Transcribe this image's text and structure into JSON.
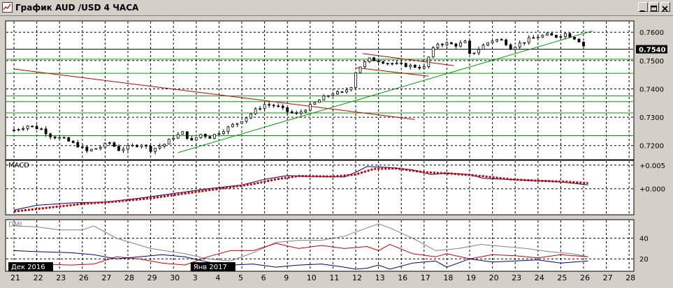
{
  "window": {
    "title": "График AUD /USD  4 ЧАСА",
    "buttons": [
      "minimize",
      "maximize",
      "close"
    ]
  },
  "colors": {
    "background": "#ffffff",
    "grid": "#000000",
    "candle": "#000000",
    "trend_green": "#00a000",
    "trend_red": "#c00000",
    "macd_line": "#000080",
    "macd_signal": "#cc0000",
    "dmi_adx": "#808080",
    "dmi_plus": "#cc0000",
    "dmi_minus": "#000080",
    "label_box": "#000000"
  },
  "chart_data": [
    {
      "type": "candlestick",
      "title": "",
      "current_price_label": "0.7540",
      "y_ticks": [
        "0.7600",
        "0.7500",
        "0.7400",
        "0.7300",
        "0.7200"
      ],
      "ylim": [
        0.715,
        0.764
      ],
      "x_ticks": [
        "21",
        "22",
        "23",
        "26",
        "27",
        "28",
        "29",
        "30",
        "3",
        "4",
        "5",
        "6",
        "9",
        "10",
        "11",
        "12",
        "13",
        "16",
        "17",
        "18",
        "19",
        "20",
        "23",
        "24",
        "25",
        "26",
        "27",
        "28"
      ],
      "date_labels": [
        {
          "text": "Дек 2016",
          "tick": "21"
        },
        {
          "text": "Янв 2017",
          "tick": "3"
        }
      ],
      "horizontal_levels": [
        0.754,
        0.7505,
        0.7455,
        0.7375,
        0.7355,
        0.7315,
        0.7235
      ],
      "trendlines": [
        {
          "color": "red",
          "from": {
            "tick": 0,
            "price": 0.747
          },
          "to": {
            "tick": 17.6,
            "price": 0.7292
          }
        },
        {
          "color": "green",
          "from": {
            "tick": 7.2,
            "price": 0.7175
          },
          "to": {
            "tick": 25.4,
            "price": 0.7605
          }
        },
        {
          "color": "red",
          "from": {
            "tick": 15.3,
            "price": 0.7525
          },
          "to": {
            "tick": 19.3,
            "price": 0.7482
          }
        },
        {
          "color": "red",
          "from": {
            "tick": 15.0,
            "price": 0.7475
          },
          "to": {
            "tick": 18.2,
            "price": 0.7445
          }
        }
      ],
      "close_path": [
        [
          0.0,
          0.7255
        ],
        [
          0.6,
          0.727
        ],
        [
          1.2,
          0.7258
        ],
        [
          1.6,
          0.7235
        ],
        [
          2.2,
          0.7222
        ],
        [
          2.8,
          0.72
        ],
        [
          3.2,
          0.718
        ],
        [
          3.8,
          0.7195
        ],
        [
          4.2,
          0.721
        ],
        [
          4.6,
          0.7185
        ],
        [
          5.0,
          0.7195
        ],
        [
          5.6,
          0.7205
        ],
        [
          6.0,
          0.7185
        ],
        [
          6.6,
          0.7205
        ],
        [
          7.0,
          0.723
        ],
        [
          7.4,
          0.7245
        ],
        [
          7.8,
          0.7215
        ],
        [
          8.2,
          0.724
        ],
        [
          8.6,
          0.723
        ],
        [
          9.2,
          0.7255
        ],
        [
          9.8,
          0.728
        ],
        [
          10.2,
          0.73
        ],
        [
          10.6,
          0.7325
        ],
        [
          11.0,
          0.7345
        ],
        [
          11.5,
          0.734
        ],
        [
          12.0,
          0.732
        ],
        [
          12.4,
          0.731
        ],
        [
          12.8,
          0.733
        ],
        [
          13.2,
          0.735
        ],
        [
          13.6,
          0.737
        ],
        [
          14.0,
          0.7385
        ],
        [
          14.4,
          0.7385
        ],
        [
          14.8,
          0.741
        ],
        [
          15.0,
          0.746
        ],
        [
          15.2,
          0.748
        ],
        [
          15.6,
          0.7505
        ],
        [
          16.0,
          0.75
        ],
        [
          16.5,
          0.749
        ],
        [
          17.0,
          0.7485
        ],
        [
          17.5,
          0.748
        ],
        [
          18.0,
          0.7475
        ],
        [
          18.3,
          0.753
        ],
        [
          18.6,
          0.756
        ],
        [
          19.0,
          0.756
        ],
        [
          19.4,
          0.7555
        ],
        [
          19.8,
          0.7565
        ],
        [
          20.0,
          0.752
        ],
        [
          20.3,
          0.7535
        ],
        [
          20.7,
          0.756
        ],
        [
          21.1,
          0.7575
        ],
        [
          21.5,
          0.757
        ],
        [
          21.8,
          0.7545
        ],
        [
          22.2,
          0.756
        ],
        [
          22.6,
          0.7575
        ],
        [
          23.0,
          0.7585
        ],
        [
          23.4,
          0.759
        ],
        [
          23.8,
          0.7585
        ],
        [
          24.2,
          0.7595
        ],
        [
          24.6,
          0.758
        ],
        [
          24.9,
          0.7565
        ],
        [
          25.1,
          0.754
        ]
      ]
    },
    {
      "type": "line",
      "title": "MACD",
      "y_ticks": [
        "+0.005",
        "+0.000"
      ],
      "ylim": [
        -0.0055,
        0.006
      ],
      "series": [
        {
          "role": "macd",
          "points": [
            [
              0.0,
              -0.0045
            ],
            [
              1.0,
              -0.0035
            ],
            [
              2.5,
              -0.003
            ],
            [
              4.0,
              -0.0028
            ],
            [
              5.5,
              -0.002
            ],
            [
              7.0,
              -0.001
            ],
            [
              8.5,
              0.0
            ],
            [
              10.0,
              0.0008
            ],
            [
              11.0,
              0.002
            ],
            [
              12.0,
              0.0028
            ],
            [
              13.0,
              0.0026
            ],
            [
              14.5,
              0.0025
            ],
            [
              15.0,
              0.0035
            ],
            [
              15.5,
              0.0047
            ],
            [
              16.5,
              0.0045
            ],
            [
              17.5,
              0.004
            ],
            [
              18.3,
              0.003
            ],
            [
              19.0,
              0.0033
            ],
            [
              20.0,
              0.003
            ],
            [
              20.6,
              0.0022
            ],
            [
              21.5,
              0.002
            ],
            [
              22.5,
              0.0018
            ],
            [
              23.5,
              0.0016
            ],
            [
              24.5,
              0.0012
            ],
            [
              25.2,
              0.0008
            ]
          ]
        },
        {
          "role": "signal",
          "points": [
            [
              0.0,
              -0.0048
            ],
            [
              1.5,
              -0.004
            ],
            [
              3.0,
              -0.0032
            ],
            [
              4.5,
              -0.0027
            ],
            [
              6.0,
              -0.002
            ],
            [
              7.5,
              -0.001
            ],
            [
              9.0,
              0.0
            ],
            [
              10.5,
              0.001
            ],
            [
              11.5,
              0.002
            ],
            [
              12.5,
              0.0027
            ],
            [
              14.0,
              0.0026
            ],
            [
              15.0,
              0.003
            ],
            [
              15.8,
              0.0042
            ],
            [
              16.8,
              0.0043
            ],
            [
              18.0,
              0.0035
            ],
            [
              19.2,
              0.0032
            ],
            [
              20.5,
              0.0027
            ],
            [
              21.8,
              0.002
            ],
            [
              23.0,
              0.0017
            ],
            [
              24.2,
              0.0015
            ],
            [
              25.2,
              0.0012
            ]
          ]
        }
      ]
    },
    {
      "type": "line",
      "title": "DMI",
      "y_ticks": [
        "40",
        "20"
      ],
      "ylim": [
        8,
        58
      ],
      "series": [
        {
          "role": "adx",
          "points": [
            [
              0.0,
              52
            ],
            [
              1.0,
              51
            ],
            [
              2.0,
              48
            ],
            [
              3.0,
              48
            ],
            [
              3.5,
              52
            ],
            [
              4.5,
              40
            ],
            [
              6.0,
              30
            ],
            [
              7.5,
              25
            ],
            [
              8.5,
              20
            ],
            [
              9.5,
              18
            ],
            [
              10.5,
              26
            ],
            [
              11.5,
              36
            ],
            [
              12.5,
              38
            ],
            [
              13.5,
              38
            ],
            [
              14.5,
              42
            ],
            [
              15.5,
              50
            ],
            [
              16.0,
              54
            ],
            [
              16.5,
              50
            ],
            [
              17.5,
              40
            ],
            [
              18.5,
              28
            ],
            [
              19.5,
              30
            ],
            [
              20.5,
              34
            ],
            [
              21.5,
              32
            ],
            [
              22.5,
              30
            ],
            [
              23.5,
              27
            ],
            [
              24.5,
              25
            ],
            [
              25.2,
              22
            ]
          ]
        },
        {
          "role": "di_plus",
          "points": [
            [
              0.0,
              12
            ],
            [
              1.0,
              15
            ],
            [
              2.5,
              14
            ],
            [
              3.5,
              15
            ],
            [
              4.5,
              22
            ],
            [
              5.5,
              20
            ],
            [
              6.5,
              16
            ],
            [
              7.5,
              14
            ],
            [
              8.5,
              22
            ],
            [
              9.5,
              28
            ],
            [
              10.5,
              28
            ],
            [
              11.5,
              35
            ],
            [
              12.5,
              30
            ],
            [
              13.5,
              33
            ],
            [
              14.5,
              30
            ],
            [
              15.5,
              32
            ],
            [
              16.0,
              28
            ],
            [
              16.5,
              34
            ],
            [
              17.5,
              25
            ],
            [
              18.5,
              22
            ],
            [
              19.0,
              25
            ],
            [
              20.0,
              20
            ],
            [
              21.0,
              24
            ],
            [
              22.0,
              23
            ],
            [
              23.0,
              21
            ],
            [
              24.0,
              24
            ],
            [
              25.2,
              22
            ]
          ]
        },
        {
          "role": "di_minus",
          "points": [
            [
              0.0,
              28
            ],
            [
              1.0,
              27
            ],
            [
              2.5,
              26
            ],
            [
              3.5,
              24
            ],
            [
              4.5,
              20
            ],
            [
              5.5,
              22
            ],
            [
              6.5,
              24
            ],
            [
              7.5,
              22
            ],
            [
              8.5,
              17
            ],
            [
              9.5,
              14
            ],
            [
              10.5,
              15
            ],
            [
              11.5,
              12
            ],
            [
              12.5,
              14
            ],
            [
              13.5,
              15
            ],
            [
              14.5,
              12
            ],
            [
              15.0,
              10
            ],
            [
              15.5,
              11
            ],
            [
              16.0,
              14
            ],
            [
              16.5,
              10
            ],
            [
              17.5,
              16
            ],
            [
              18.5,
              18
            ],
            [
              19.0,
              12
            ],
            [
              20.0,
              20
            ],
            [
              21.0,
              17
            ],
            [
              22.0,
              18
            ],
            [
              23.0,
              19
            ],
            [
              24.0,
              16
            ],
            [
              25.2,
              18
            ]
          ]
        }
      ]
    }
  ]
}
